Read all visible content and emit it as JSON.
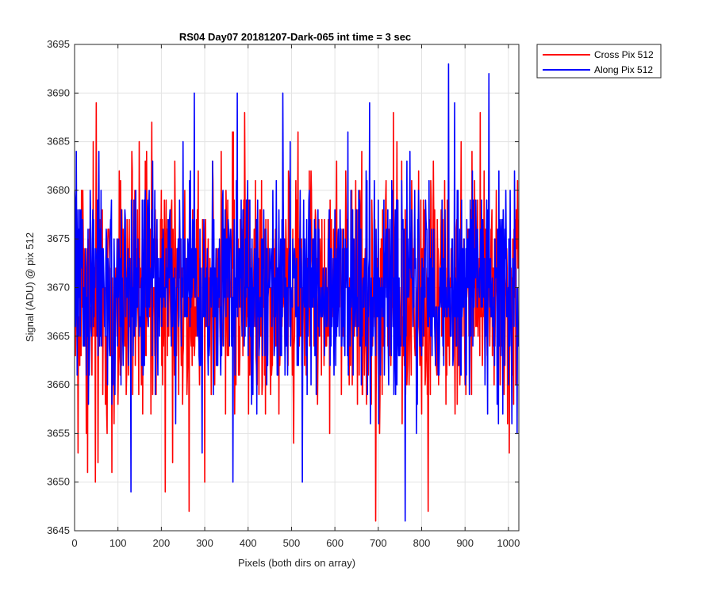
{
  "chart_data": {
    "type": "line",
    "title": "RS04 Day07 20181207-Dark-065 int time = 3 sec",
    "xlabel": "Pixels (both dirs on array)",
    "ylabel": "Signal (ADU) @ pix 512",
    "xlim": [
      0,
      1024
    ],
    "ylim": [
      3645,
      3695
    ],
    "xticks": [
      0,
      100,
      200,
      300,
      400,
      500,
      600,
      700,
      800,
      900,
      1000
    ],
    "yticks": [
      3645,
      3650,
      3655,
      3660,
      3665,
      3670,
      3675,
      3680,
      3685,
      3690,
      3695
    ],
    "grid": true,
    "legend_position": "outside top-right",
    "series": [
      {
        "name": "Cross Pix 512",
        "color": "#ff0000",
        "mean": 3669,
        "std": 6,
        "min": 3646,
        "max": 3689,
        "n_points": 1024,
        "points": [
          [
            0,
            3675
          ],
          [
            2,
            3663
          ],
          [
            8,
            3653
          ],
          [
            30,
            3651
          ],
          [
            50,
            3689
          ],
          [
            54,
            3652
          ],
          [
            132,
            3684
          ],
          [
            178,
            3687
          ],
          [
            209,
            3649
          ],
          [
            264,
            3647
          ],
          [
            300,
            3650
          ],
          [
            366,
            3686
          ],
          [
            392,
            3688
          ],
          [
            515,
            3686
          ],
          [
            694,
            3646
          ],
          [
            735,
            3688
          ],
          [
            815,
            3647
          ],
          [
            935,
            3688
          ],
          [
            1018,
            3678
          ]
        ]
      },
      {
        "name": "Along Pix 512",
        "color": "#0000ff",
        "mean": 3670,
        "std": 5.5,
        "min": 3646,
        "max": 3693,
        "n_points": 1024,
        "points": [
          [
            4,
            3684
          ],
          [
            130,
            3649
          ],
          [
            180,
            3683
          ],
          [
            250,
            3685
          ],
          [
            365,
            3650
          ],
          [
            375,
            3690
          ],
          [
            480,
            3690
          ],
          [
            525,
            3650
          ],
          [
            630,
            3686
          ],
          [
            680,
            3689
          ],
          [
            762,
            3646
          ],
          [
            862,
            3693
          ],
          [
            876,
            3689
          ],
          [
            955,
            3692
          ],
          [
            1000,
            3660
          ],
          [
            1020,
            3655
          ]
        ]
      }
    ]
  }
}
